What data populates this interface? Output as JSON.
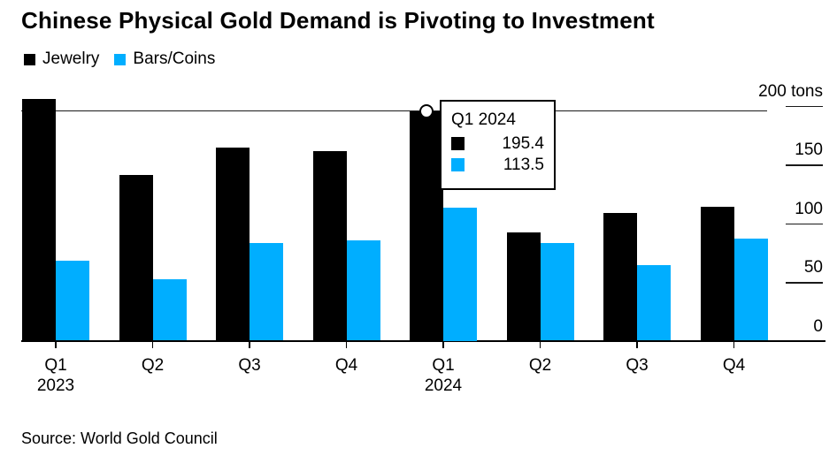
{
  "source": "Source: World Gold Council",
  "colors": {
    "jewelry": "#000000",
    "bars_coins": "#00AEFF",
    "background": "#FFFFFF",
    "text": "#000000"
  },
  "chart_data": {
    "type": "bar",
    "title": "Chinese Physical Gold Demand is Pivoting to Investment",
    "unit": "tons",
    "categories": [
      "Q1 2023",
      "Q2 2023",
      "Q3 2023",
      "Q4 2023",
      "Q1 2024",
      "Q2 2024",
      "Q3 2024",
      "Q4 2024"
    ],
    "x_tick_labels": [
      {
        "quarter": "Q1",
        "year": "2023"
      },
      {
        "quarter": "Q2",
        "year": ""
      },
      {
        "quarter": "Q3",
        "year": ""
      },
      {
        "quarter": "Q4",
        "year": ""
      },
      {
        "quarter": "Q1",
        "year": "2024"
      },
      {
        "quarter": "Q2",
        "year": ""
      },
      {
        "quarter": "Q3",
        "year": ""
      },
      {
        "quarter": "Q4",
        "year": ""
      }
    ],
    "series": [
      {
        "name": "Jewelry",
        "color": "#000000",
        "values": [
          205.6,
          141.0,
          164.0,
          161.0,
          195.4,
          92.0,
          109.0,
          114.0
        ]
      },
      {
        "name": "Bars/Coins",
        "color": "#00AEFF",
        "values": [
          68.0,
          52.0,
          83.0,
          85.0,
          113.5,
          83.0,
          64.0,
          87.0
        ]
      }
    ],
    "ylim": [
      0,
      200
    ],
    "yticks": [
      {
        "value": 0,
        "label": "0"
      },
      {
        "value": 50,
        "label": "50"
      },
      {
        "value": 100,
        "label": "100"
      },
      {
        "value": 150,
        "label": "150"
      },
      {
        "value": 200,
        "label": "200 tons"
      }
    ],
    "grid": false,
    "legend_position": "top-left",
    "axis_side": "right",
    "annotations": {
      "highlighted_category": "Q1 2024",
      "highlight_index": 4,
      "reference_line_value": 195.4
    }
  },
  "tooltip": {
    "title": "Q1 2024",
    "rows": [
      {
        "series": "Jewelry",
        "value": "195.4"
      },
      {
        "series": "Bars/Coins",
        "value": "113.5"
      }
    ]
  }
}
